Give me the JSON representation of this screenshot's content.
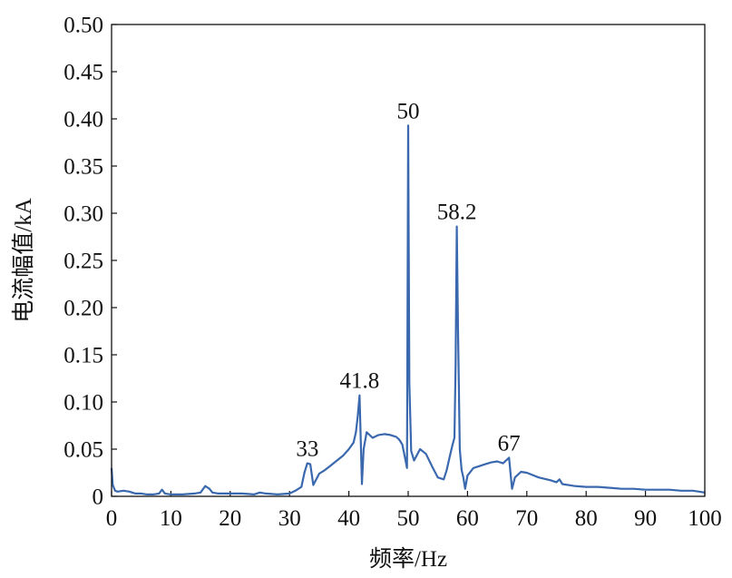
{
  "chart_data": {
    "type": "line",
    "title": "",
    "xlabel": "频率/Hz",
    "ylabel": "电流幅值/kA",
    "xlim": [
      0,
      100
    ],
    "ylim": [
      0,
      0.5
    ],
    "xticks": [
      "0",
      "10",
      "20",
      "30",
      "40",
      "50",
      "60",
      "70",
      "80",
      "90",
      "100"
    ],
    "yticks": [
      "0",
      "0.05",
      "0.10",
      "0.15",
      "0.20",
      "0.25",
      "0.30",
      "0.35",
      "0.40",
      "0.45",
      "0.50"
    ],
    "grid": false,
    "line_color": "#3A68AE",
    "annotations": [
      {
        "text": "33",
        "x": 33,
        "y": 0.035
      },
      {
        "text": "41.8",
        "x": 41.8,
        "y": 0.107
      },
      {
        "text": "50",
        "x": 50,
        "y": 0.393
      },
      {
        "text": "58.2",
        "x": 58.2,
        "y": 0.286
      },
      {
        "text": "67",
        "x": 67,
        "y": 0.041
      }
    ],
    "series": [
      {
        "x": [
          0,
          0.2,
          0.6,
          1,
          2,
          3,
          4,
          5,
          6,
          7,
          8,
          8.5,
          9,
          10,
          12,
          14,
          15,
          15.8,
          16.5,
          17,
          18,
          20,
          22,
          24,
          25,
          26,
          28,
          30,
          31,
          32,
          32.5,
          33,
          33.5,
          34,
          35,
          36,
          37,
          38,
          39,
          40,
          40.8,
          41.2,
          41.5,
          41.8,
          42,
          42.2,
          42.5,
          43,
          44,
          45,
          46,
          47,
          47.5,
          48,
          48.5,
          49,
          49.5,
          49.8,
          50,
          50.2,
          50.5,
          51,
          52,
          53,
          54,
          55,
          56,
          56.5,
          57,
          57.5,
          57.8,
          58,
          58.2,
          58.4,
          58.7,
          59,
          59.3,
          59.6,
          60,
          61,
          62,
          63,
          64,
          65,
          66,
          66.5,
          67,
          67.5,
          68,
          69,
          70,
          72,
          74,
          75,
          75.5,
          76,
          78,
          80,
          82,
          84,
          86,
          88,
          90,
          92,
          94,
          96,
          98,
          99,
          100
        ],
        "y": [
          0.03,
          0.012,
          0.006,
          0.005,
          0.006,
          0.005,
          0.003,
          0.003,
          0.002,
          0.002,
          0.003,
          0.007,
          0.003,
          0.002,
          0.002,
          0.003,
          0.004,
          0.011,
          0.008,
          0.004,
          0.003,
          0.003,
          0.003,
          0.002,
          0.004,
          0.003,
          0.002,
          0.003,
          0.006,
          0.01,
          0.025,
          0.035,
          0.034,
          0.012,
          0.024,
          0.028,
          0.033,
          0.038,
          0.043,
          0.05,
          0.057,
          0.068,
          0.085,
          0.107,
          0.06,
          0.013,
          0.05,
          0.068,
          0.062,
          0.065,
          0.066,
          0.065,
          0.064,
          0.063,
          0.06,
          0.055,
          0.04,
          0.03,
          0.393,
          0.12,
          0.048,
          0.038,
          0.05,
          0.045,
          0.032,
          0.02,
          0.018,
          0.028,
          0.042,
          0.055,
          0.062,
          0.14,
          0.286,
          0.18,
          0.05,
          0.028,
          0.02,
          0.008,
          0.022,
          0.03,
          0.032,
          0.034,
          0.036,
          0.037,
          0.035,
          0.038,
          0.041,
          0.008,
          0.02,
          0.026,
          0.025,
          0.02,
          0.017,
          0.015,
          0.018,
          0.013,
          0.011,
          0.01,
          0.01,
          0.009,
          0.008,
          0.008,
          0.007,
          0.007,
          0.007,
          0.006,
          0.006,
          0.005,
          0.004
        ]
      }
    ]
  }
}
